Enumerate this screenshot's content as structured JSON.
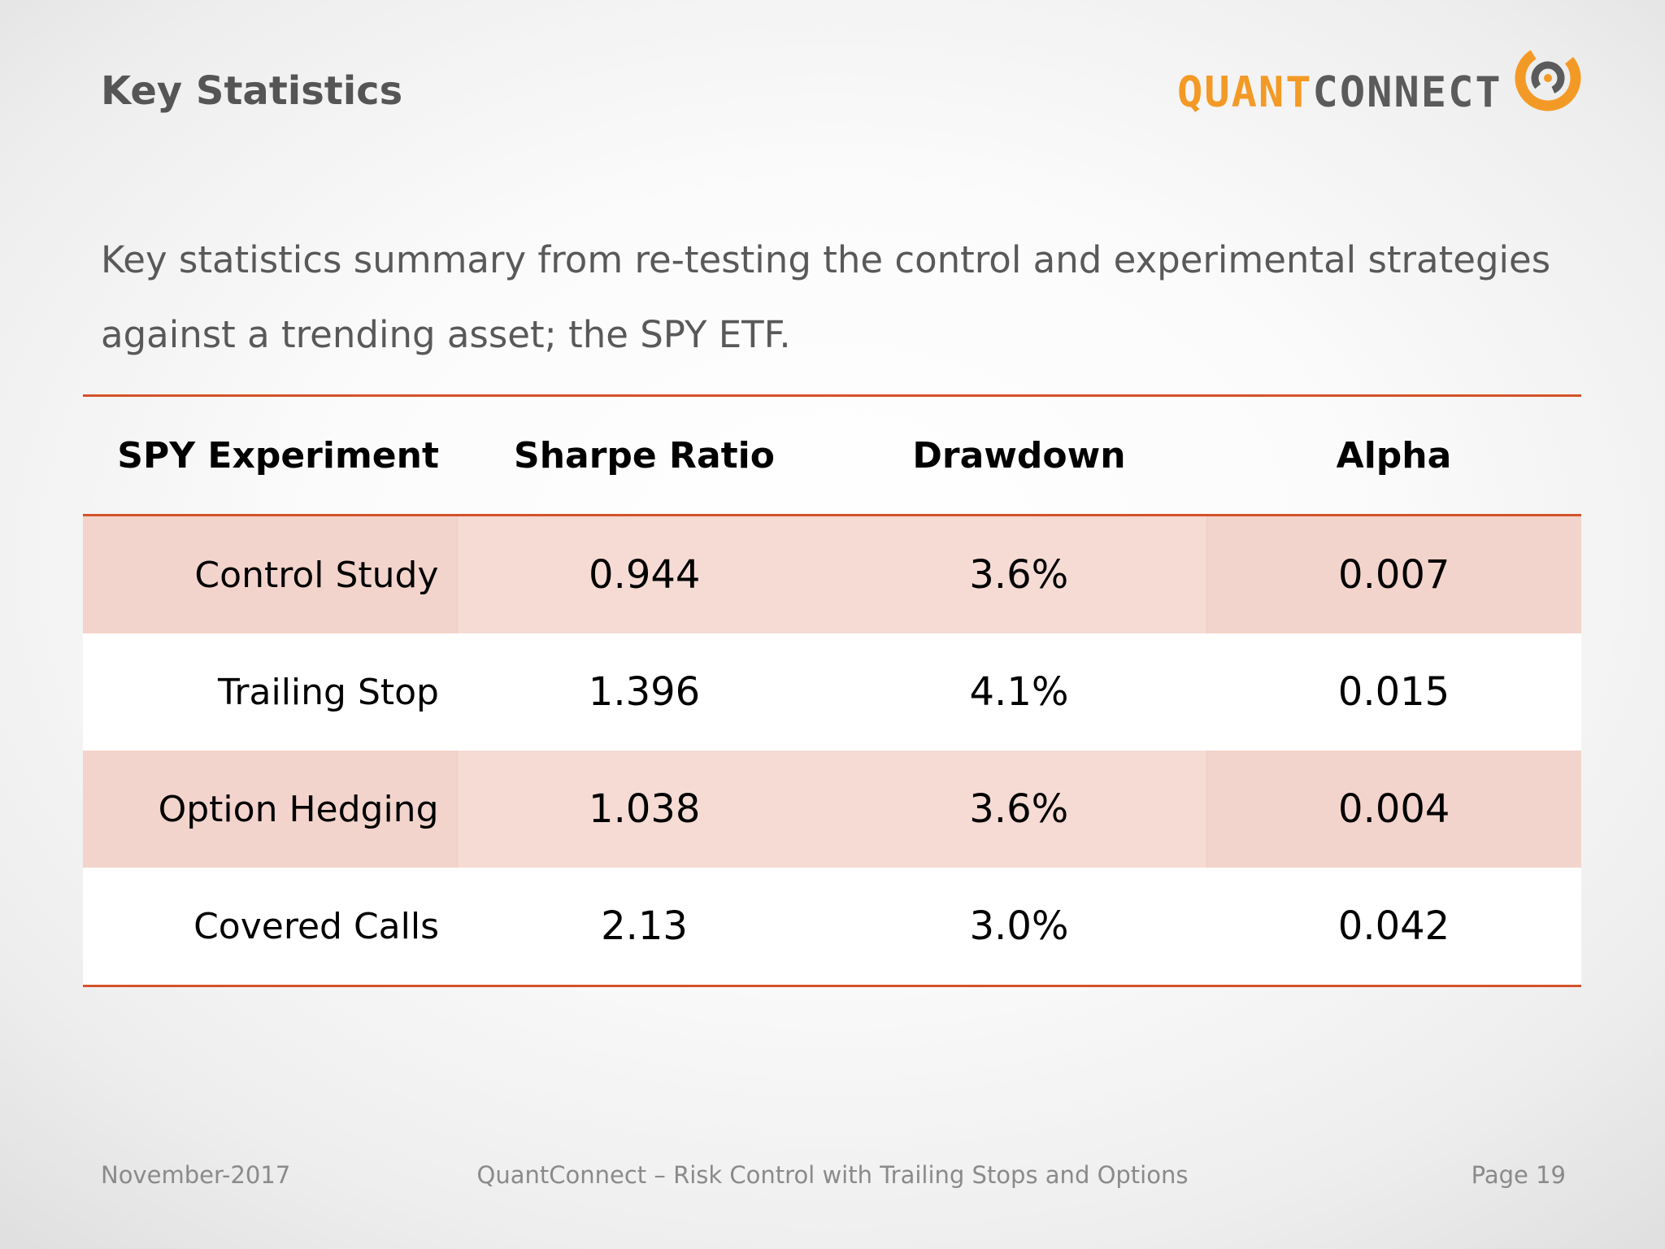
{
  "slide": {
    "title": "Key Statistics",
    "intro_lines": [
      "Key statistics summary from re-testing the control and experimental strategies",
      "against a trending asset; the SPY ETF."
    ]
  },
  "logo": {
    "quant": "QUANT",
    "connect": "CONNECT",
    "icon": "quantconnect-logo-icon",
    "colors": {
      "orange": "#f39a26",
      "gray": "#5b5b5b"
    }
  },
  "table": {
    "headers": [
      "SPY Experiment",
      "Sharpe Ratio",
      "Drawdown",
      "Alpha"
    ],
    "rows": [
      {
        "experiment": "Control Study",
        "sharpe": "0.944",
        "drawdown": "3.6%",
        "alpha": "0.007"
      },
      {
        "experiment": "Trailing Stop",
        "sharpe": "1.396",
        "drawdown": "4.1%",
        "alpha": "0.015"
      },
      {
        "experiment": "Option Hedging",
        "sharpe": "1.038",
        "drawdown": "3.6%",
        "alpha": "0.004"
      },
      {
        "experiment": "Covered Calls",
        "sharpe": "2.13",
        "drawdown": "3.0%",
        "alpha": "0.042"
      }
    ],
    "colors": {
      "rule": "#d4532a",
      "shaded_row": "#f6dbd4"
    }
  },
  "footer": {
    "date": "November-2017",
    "center": "QuantConnect – Risk Control with Trailing Stops and Options",
    "page": "Page 19"
  }
}
